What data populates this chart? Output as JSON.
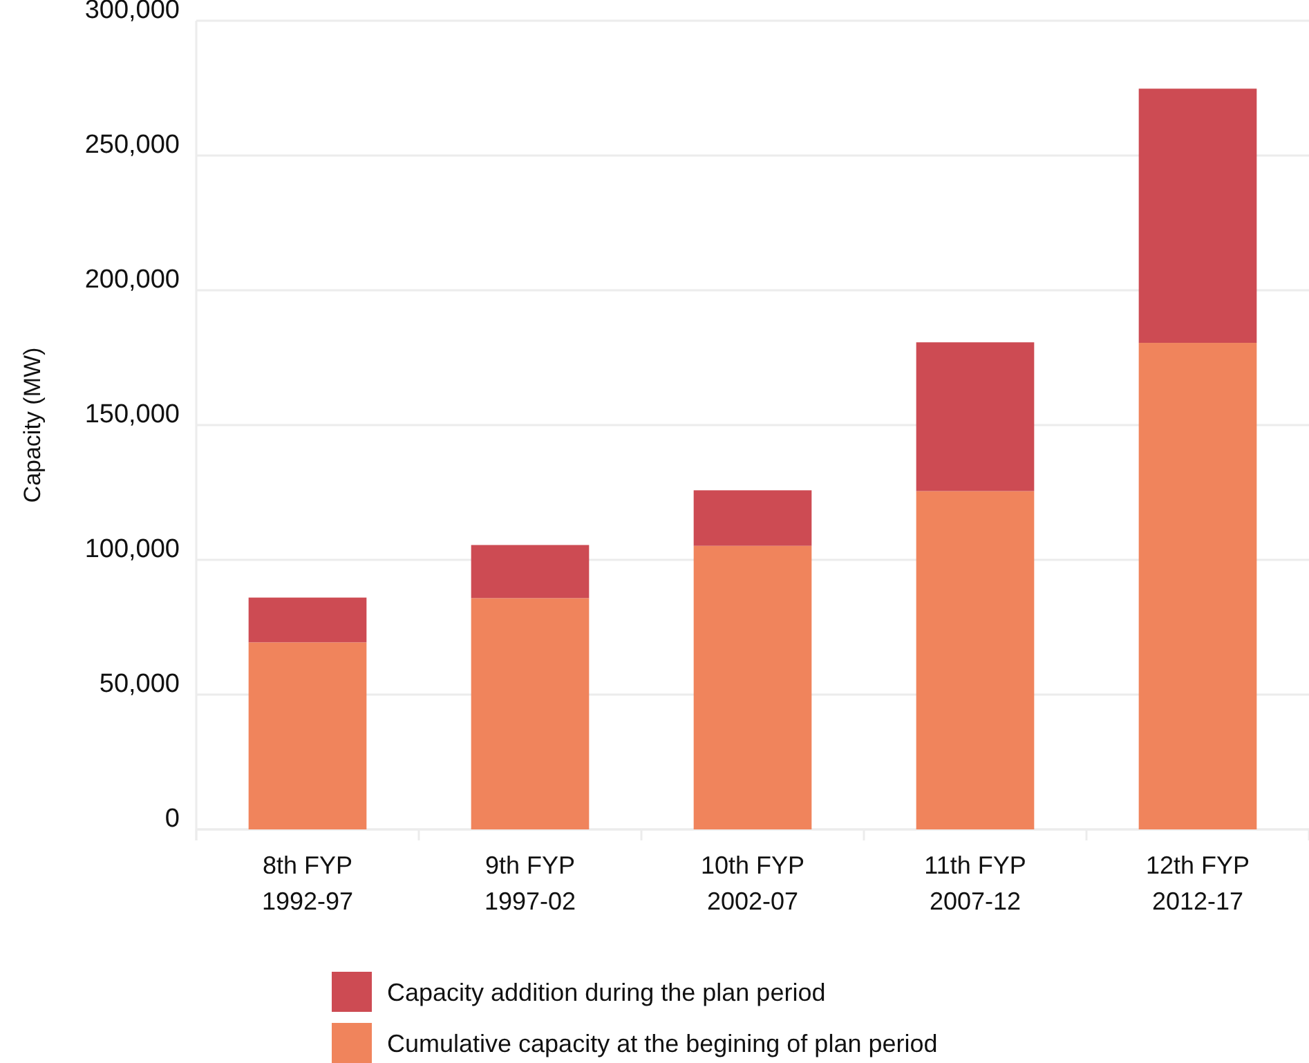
{
  "chart_data": {
    "type": "bar",
    "ylabel": "Capacity (MW)",
    "categories": [
      "8th FYP\n1992-97",
      "9th FYP\n1997-02",
      "10th FYP\n2002-07",
      "11th FYP\n2007-12",
      "12th FYP\n2012-17"
    ],
    "stacked": true,
    "series": [
      {
        "name": "Cumulative capacity at the begining of plan period",
        "color": "#f0845c",
        "values": [
          69400,
          85800,
          105200,
          125500,
          180500
        ]
      },
      {
        "name": "Capacity addition during the plan period",
        "color": "#cd4b53",
        "values": [
          16600,
          19700,
          20600,
          55200,
          94300
        ]
      }
    ],
    "ylim": [
      0,
      300000
    ],
    "yticks": [
      {
        "value": 0,
        "label": "0"
      },
      {
        "value": 50000,
        "label": "50,000"
      },
      {
        "value": 100000,
        "label": "100,000"
      },
      {
        "value": 150000,
        "label": "150,000"
      },
      {
        "value": 200000,
        "label": "200,000"
      },
      {
        "value": 250000,
        "label": "250,000"
      },
      {
        "value": 300000,
        "label": "300,000"
      }
    ],
    "grid": "y",
    "legend": "bottom"
  }
}
